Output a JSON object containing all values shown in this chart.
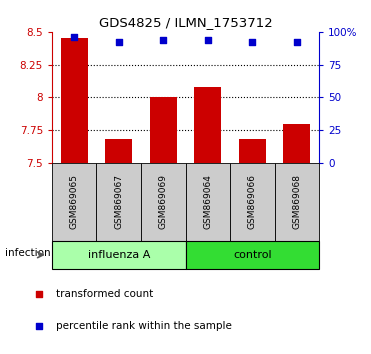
{
  "title": "GDS4825 / ILMN_1753712",
  "samples": [
    "GSM869065",
    "GSM869067",
    "GSM869069",
    "GSM869064",
    "GSM869066",
    "GSM869068"
  ],
  "bar_values": [
    8.45,
    7.68,
    8.0,
    8.08,
    7.68,
    7.8
  ],
  "percentile_values": [
    96,
    92,
    94,
    94,
    92,
    92
  ],
  "ylim_left": [
    7.5,
    8.5
  ],
  "ylim_right": [
    0,
    100
  ],
  "yticks_left": [
    7.5,
    7.75,
    8.0,
    8.25,
    8.5
  ],
  "yticks_right": [
    0,
    25,
    50,
    75,
    100
  ],
  "ytick_labels_left": [
    "7.5",
    "7.75",
    "8",
    "8.25",
    "8.5"
  ],
  "ytick_labels_right": [
    "0",
    "25",
    "50",
    "75",
    "100%"
  ],
  "bar_color": "#cc0000",
  "scatter_color": "#0000cc",
  "bar_bottom": 7.5,
  "groups": [
    {
      "label": "influenza A",
      "indices": [
        0,
        1,
        2
      ],
      "color": "#aaffaa"
    },
    {
      "label": "control",
      "indices": [
        3,
        4,
        5
      ],
      "color": "#33dd33"
    }
  ],
  "infection_label": "infection",
  "legend_items": [
    {
      "color": "#cc0000",
      "label": "transformed count"
    },
    {
      "color": "#0000cc",
      "label": "percentile rank within the sample"
    }
  ],
  "dotted_yticks": [
    7.75,
    8.0,
    8.25
  ],
  "background_color": "#ffffff",
  "plot_bg_color": "#ffffff",
  "sample_bg": "#cccccc"
}
